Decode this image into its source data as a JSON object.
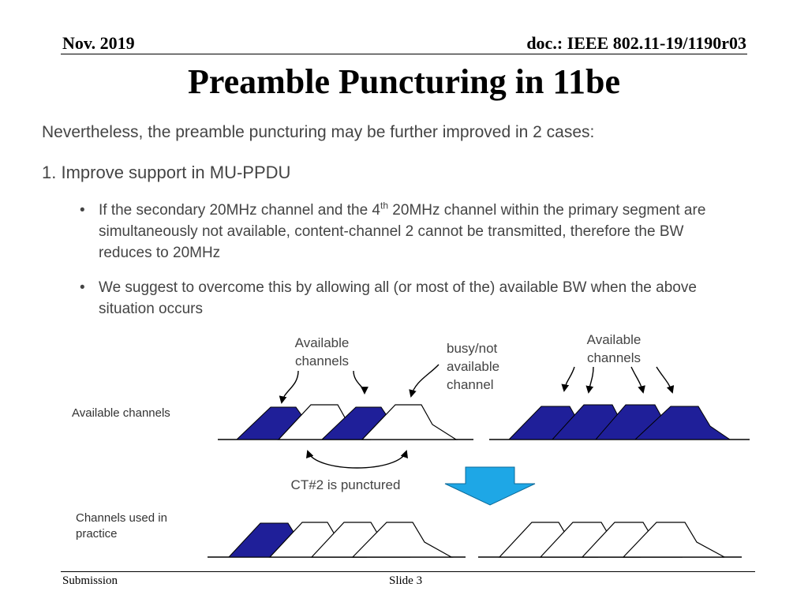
{
  "header": {
    "date": "Nov. 2019",
    "doc": "doc.: IEEE 802.11-19/1190r03"
  },
  "title": "Preamble Puncturing in 11be",
  "intro": "Nevertheless, the preamble puncturing may be further improved in 2 cases:",
  "point1": "1.  Improve support in MU-PPDU",
  "bullets": [
    {
      "before_sup": "If the secondary 20MHz channel and the 4",
      "sup": "th",
      "after_sup": " 20MHz channel within the primary segment are simultaneously not available, content-channel 2 cannot be transmitted, therefore the BW reduces to 20MHz"
    },
    {
      "text": "We suggest to overcome this by allowing all (or most of the) available BW when the above situation occurs"
    }
  ],
  "bullet_glyph": "•",
  "diagram": {
    "row1_label": "Available channels",
    "row2_label_line1": "Channels used in",
    "row2_label_line2": "practice",
    "avail_label_line1": "Available",
    "avail_label_line2": "channels",
    "busy_line1": "busy/not",
    "busy_line2": "available",
    "busy_line3": "channel",
    "avail2_line1": "Available",
    "avail2_line2": "channels",
    "ct_label": "CT#2 is punctured",
    "colors": {
      "filled": "#1f1f99",
      "arrow": "#1ea7e6",
      "stroke": "#000000"
    }
  },
  "footer": {
    "left": "Submission",
    "center": "Slide 3"
  }
}
